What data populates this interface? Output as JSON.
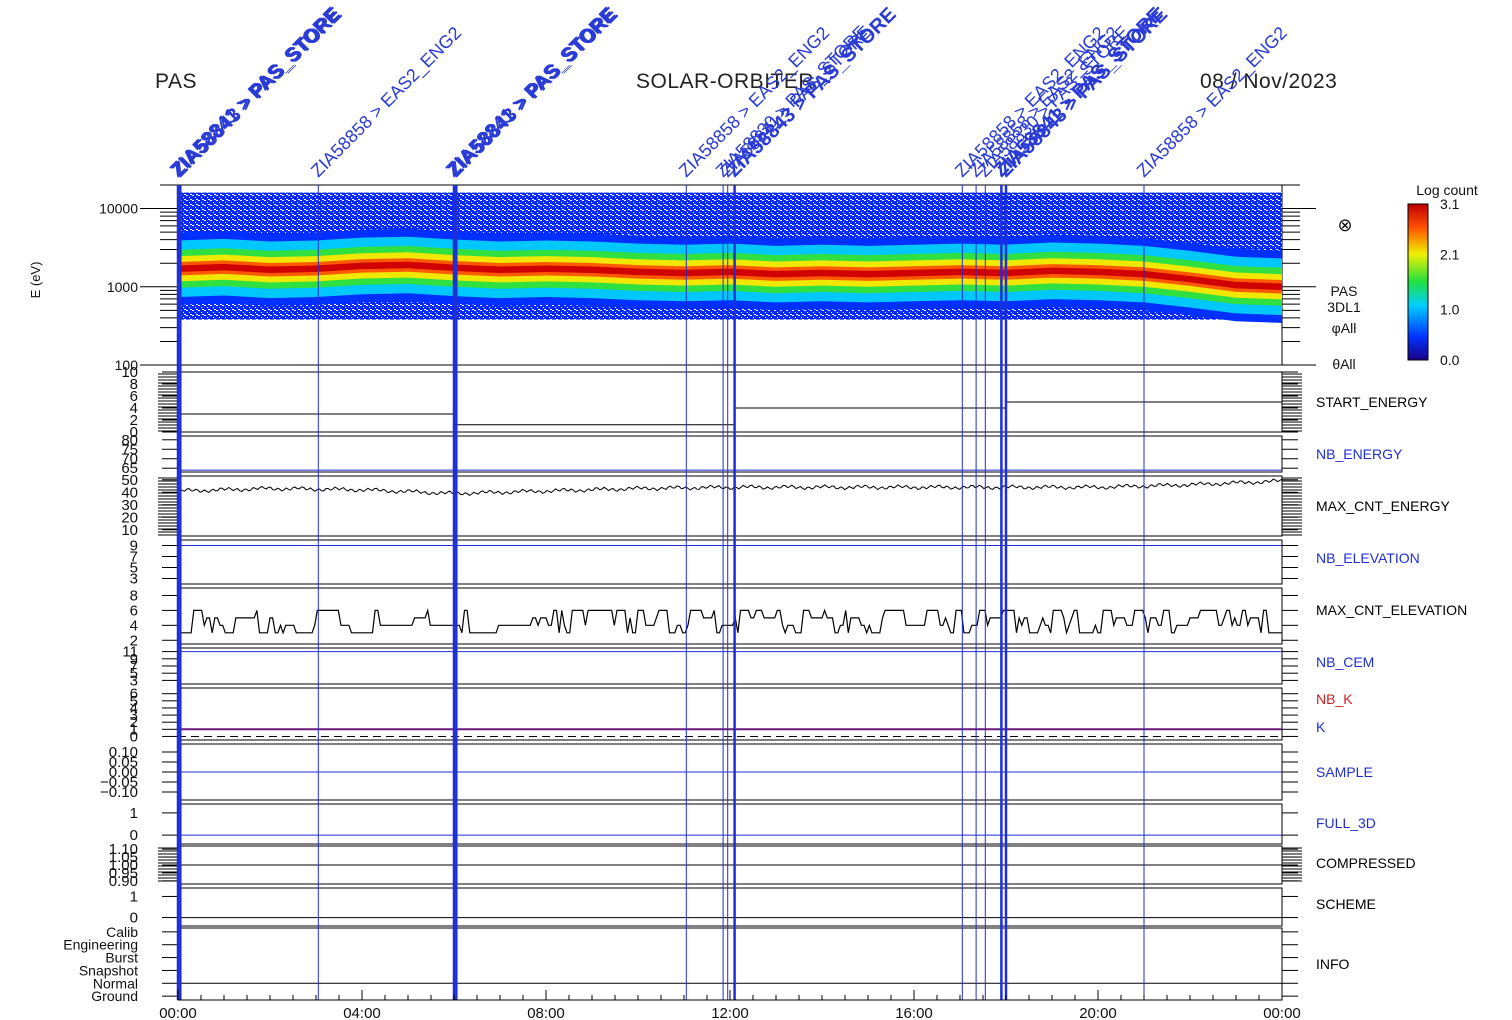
{
  "header": {
    "left": "PAS",
    "center": "SOLAR-ORBITER",
    "right": "08 / Nov/2023"
  },
  "colors": {
    "event_line": "#1f2fd6",
    "event_text": "#2a3bd6",
    "trace": "#000000",
    "nbk_label": "#cc2020",
    "k_line": "#6a1a7a"
  },
  "chart_data": {
    "type": "heatmap",
    "xaxis": {
      "ticks": [
        "00:00",
        "04:00",
        "08:00",
        "12:00",
        "16:00",
        "20:00",
        "00:00"
      ],
      "tick_hours": [
        0,
        4,
        8,
        12,
        16,
        20,
        24
      ],
      "range_hours": [
        0,
        24
      ]
    },
    "events": [
      {
        "hour": 0.0,
        "label": "ZIA58841 > PAS_STORE",
        "bold": true
      },
      {
        "hour": 0.05,
        "label": "ZIA58843 > PAS_STORE",
        "bold": true
      },
      {
        "hour": 3.05,
        "label": "ZIA58858 > EAS2_ENG2",
        "bold": false
      },
      {
        "hour": 6.0,
        "label": "ZIA58841 > PAS_STORE",
        "bold": true
      },
      {
        "hour": 6.05,
        "label": "ZIA58843 > PAS_STORE",
        "bold": true
      },
      {
        "hour": 11.05,
        "label": "ZIA58858 > EAS2_ENG2",
        "bold": false
      },
      {
        "hour": 11.85,
        "label": "ZIA58830 > PAS_STORE",
        "bold": false
      },
      {
        "hour": 11.95,
        "label": "ZIA58841 > PAS_STORE",
        "bold": false
      },
      {
        "hour": 12.1,
        "label": "ZIA58843 > PAS_STORE",
        "bold": true
      },
      {
        "hour": 17.05,
        "label": "ZIA58858 > EAS2_ENG2",
        "bold": false
      },
      {
        "hour": 17.35,
        "label": "ZIA58858 > EAS2_ENG2",
        "bold": false
      },
      {
        "hour": 17.55,
        "label": "ZIA58830 > PAS_STORE",
        "bold": false
      },
      {
        "hour": 17.9,
        "label": "ZIA58841 > PAS_STORE",
        "bold": true
      },
      {
        "hour": 18.0,
        "label": "ZIA58843 > PAS_STORE",
        "bold": true
      },
      {
        "hour": 21.0,
        "label": "ZIA58858 > EAS2_ENG2",
        "bold": false
      }
    ],
    "spectrogram": {
      "ylabel": "E (eV)",
      "ytick_labels": [
        "10000",
        "1000",
        "100"
      ],
      "ytick_values": [
        10000,
        1000,
        100
      ],
      "ylim": [
        100,
        20000
      ],
      "peak_energy_ev": [
        1700,
        1780,
        1650,
        1700,
        1850,
        1900,
        1750,
        1650,
        1700,
        1650,
        1550,
        1500,
        1550,
        1450,
        1500,
        1450,
        1500,
        1550,
        1500,
        1600,
        1550,
        1450,
        1250,
        1050,
        1000
      ],
      "hours": [
        0,
        1,
        2,
        3,
        4,
        5,
        6,
        7,
        8,
        9,
        10,
        11,
        12,
        13,
        14,
        15,
        16,
        17,
        18,
        19,
        20,
        21,
        22,
        23,
        24
      ],
      "side_labels": [
        "PAS",
        "3DL1",
        "φAll",
        "θAll"
      ],
      "colorbar": {
        "label": "Log count",
        "ticks": [
          "3.1",
          "2.1",
          "1.0",
          "0.0"
        ],
        "tick_values": [
          3.1,
          2.1,
          1.0,
          0.0
        ],
        "range": [
          0.0,
          3.1
        ]
      }
    },
    "panels": [
      {
        "name": "START_ENERGY",
        "color": "#000000",
        "tick_labels": [
          "10",
          "8",
          "6",
          "4",
          "2",
          "0"
        ],
        "tick_values": [
          10,
          8,
          6,
          4,
          2,
          0
        ],
        "ylim": [
          0,
          10
        ],
        "steps": [
          {
            "from": 0,
            "to": 6.0,
            "value": 3
          },
          {
            "from": 6.0,
            "to": 12.1,
            "value": 1.2
          },
          {
            "from": 12.1,
            "to": 18.0,
            "value": 4
          },
          {
            "from": 18.0,
            "to": 24,
            "value": 5
          }
        ],
        "dashed_zero": true
      },
      {
        "name": "NB_ENERGY",
        "color": "#1f2fd6",
        "tick_labels": [
          "80",
          "75",
          "70",
          "65"
        ],
        "tick_values": [
          80,
          75,
          70,
          65
        ],
        "ylim": [
          63,
          82
        ],
        "steps": [
          {
            "from": 0,
            "to": 24,
            "value": 64
          }
        ]
      },
      {
        "name": "MAX_CNT_ENERGY",
        "color": "#000000",
        "tick_labels": [
          "50",
          "40",
          "30",
          "20",
          "10"
        ],
        "tick_values": [
          50,
          40,
          30,
          20,
          10
        ],
        "ylim": [
          5,
          53
        ],
        "series_hours": [
          0,
          2,
          4,
          6,
          8,
          10,
          12,
          14,
          16,
          18,
          20,
          22,
          24
        ],
        "series_values": [
          41,
          43,
          42,
          39,
          41,
          43,
          44,
          44,
          44,
          44,
          44,
          46,
          49
        ]
      },
      {
        "name": "NB_ELEVATION",
        "color": "#1f2fd6",
        "tick_labels": [
          "9",
          "7",
          "5",
          "3"
        ],
        "tick_values": [
          9,
          7,
          5,
          3
        ],
        "ylim": [
          2,
          10
        ],
        "steps": [
          {
            "from": 0,
            "to": 24,
            "value": 9
          }
        ]
      },
      {
        "name": "MAX_CNT_ELEVATION",
        "color": "#000000",
        "tick_labels": [
          "8",
          "6",
          "4",
          "2"
        ],
        "tick_values": [
          8,
          6,
          4,
          2
        ],
        "ylim": [
          1.5,
          9
        ],
        "range_band": [
          3,
          6
        ]
      },
      {
        "name": "NB_CEM",
        "color": "#1f2fd6",
        "tick_labels": [
          "11",
          "9",
          "7",
          "5",
          "3"
        ],
        "tick_values": [
          11,
          9,
          7,
          5,
          3
        ],
        "ylim": [
          2,
          12
        ],
        "steps": [
          {
            "from": 0,
            "to": 24,
            "value": 11
          }
        ]
      },
      {
        "name": "NB_K",
        "color": "#cc2020",
        "tick_labels": [
          "6",
          "5",
          "4",
          "3",
          "2",
          "1",
          "0"
        ],
        "tick_values": [
          6,
          5,
          4,
          3,
          2,
          1,
          0
        ],
        "ylim": [
          -0.5,
          6.8
        ],
        "steps": [
          {
            "from": 0,
            "to": 24,
            "value": 1
          }
        ],
        "dashed_zero": true
      },
      {
        "name": "K",
        "color": "#1f2fd6",
        "tick_labels": [],
        "tick_values": [],
        "ylim": [
          0,
          1
        ]
      },
      {
        "name": "SAMPLE",
        "color": "#1f2fd6",
        "tick_labels": [
          "0.10",
          "0.05",
          "0.00",
          "−0.05",
          "−0.10"
        ],
        "tick_values": [
          0.1,
          0.05,
          0.0,
          -0.05,
          -0.1
        ],
        "ylim": [
          -0.14,
          0.14
        ],
        "steps": [
          {
            "from": 0,
            "to": 24,
            "value": 0.0
          }
        ]
      },
      {
        "name": "FULL_3D",
        "color": "#1f2fd6",
        "tick_labels": [
          "1",
          "0"
        ],
        "tick_values": [
          1,
          0
        ],
        "ylim": [
          -0.4,
          1.4
        ],
        "steps": [
          {
            "from": 0,
            "to": 24,
            "value": 0
          }
        ]
      },
      {
        "name": "COMPRESSED",
        "color": "#000000",
        "tick_labels": [
          "1.10",
          "1.05",
          "1.00",
          "0.95",
          "0.90"
        ],
        "tick_values": [
          1.1,
          1.05,
          1.0,
          0.95,
          0.9
        ],
        "ylim": [
          0.88,
          1.12
        ],
        "steps": [
          {
            "from": 0,
            "to": 24,
            "value": 1.0
          }
        ]
      },
      {
        "name": "SCHEME",
        "color": "#000000",
        "tick_labels": [
          "1",
          "0"
        ],
        "tick_values": [
          1,
          0
        ],
        "ylim": [
          -0.4,
          1.4
        ],
        "steps": [
          {
            "from": 0,
            "to": 24,
            "value": 0
          }
        ]
      },
      {
        "name": "INFO",
        "color": "#000000",
        "tick_labels": [
          "Calib",
          "Engineering",
          "Burst",
          "Snapshot",
          "Normal",
          "Ground"
        ],
        "tick_values": [
          5,
          4,
          3,
          2,
          1,
          0
        ],
        "ylim": [
          -0.3,
          5.3
        ],
        "steps": [
          {
            "from": 0,
            "to": 24,
            "value": 1
          }
        ]
      }
    ]
  }
}
